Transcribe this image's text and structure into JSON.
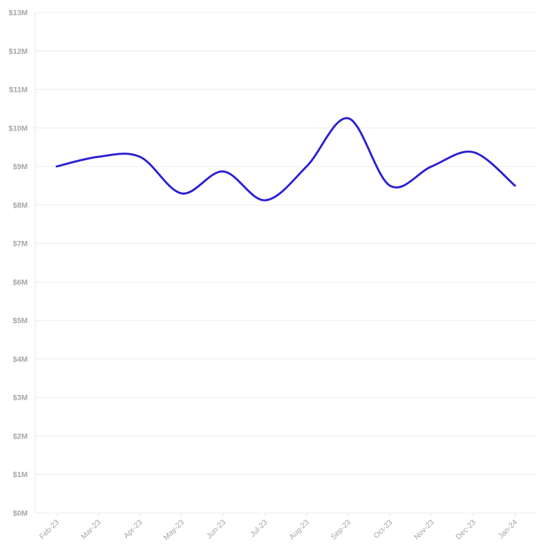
{
  "chart_data": {
    "type": "line",
    "title": "",
    "xlabel": "",
    "ylabel": "",
    "x": [
      "Feb-23",
      "Mar-23",
      "Apr-23",
      "May-23",
      "Jun-23",
      "Jul-23",
      "Aug-23",
      "Sep-23",
      "Oct-23",
      "Nov-23",
      "Dec-23",
      "Jan-24"
    ],
    "series": [
      {
        "values": [
          9.0,
          9.25,
          9.25,
          8.3,
          8.87,
          8.12,
          9.0,
          10.25,
          8.5,
          9.0,
          9.37,
          8.5
        ]
      }
    ],
    "ylim": [
      0,
      13
    ],
    "y_ticks": [
      "$0M",
      "$1M",
      "$2M",
      "$3M",
      "$4M",
      "$5M",
      "$6M",
      "$7M",
      "$8M",
      "$9M",
      "$10M",
      "$11M",
      "$12M",
      "$13M"
    ],
    "grid": true,
    "legend": "none",
    "colors": {
      "line": "#2b20d2",
      "grid": "#ececec",
      "label": "#a6a6a6"
    }
  }
}
